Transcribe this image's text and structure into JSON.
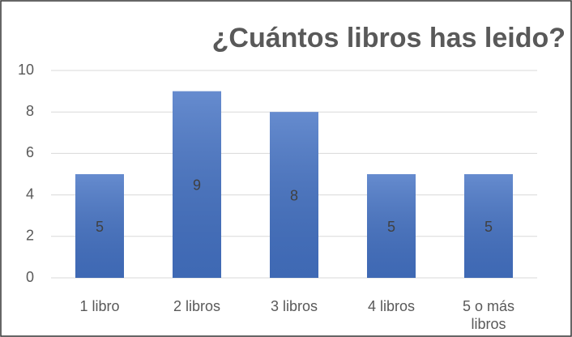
{
  "chart_data": {
    "type": "bar",
    "title": "¿Cuántos libros has leido?",
    "categories": [
      "1 libro",
      "2 libros",
      "3 libros",
      "4 libros",
      "5 o más libros"
    ],
    "values": [
      5,
      9,
      8,
      5,
      5
    ],
    "color": "#4472c4",
    "ylim": [
      0,
      10
    ],
    "yticks": [
      0,
      2,
      4,
      6,
      8,
      10
    ],
    "grid": true
  }
}
